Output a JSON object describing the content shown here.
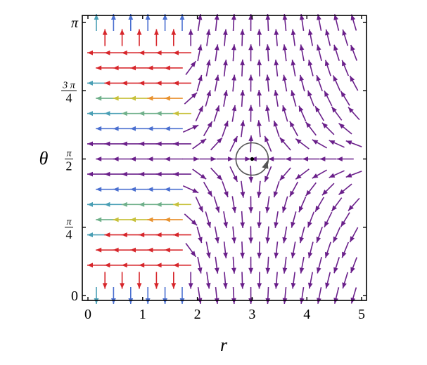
{
  "chart_data": {
    "type": "vector_field",
    "title": "",
    "xlabel": "r",
    "ylabel": "θ",
    "xlim": [
      0,
      5
    ],
    "ylim": [
      0,
      3.14159
    ],
    "grid": false,
    "legend": null,
    "x_ticks": [
      {
        "value": 0,
        "label": "0"
      },
      {
        "value": 1,
        "label": "1"
      },
      {
        "value": 2,
        "label": "2"
      },
      {
        "value": 3,
        "label": "3"
      },
      {
        "value": 4,
        "label": "4"
      },
      {
        "value": 5,
        "label": "5"
      }
    ],
    "y_ticks": [
      {
        "value": 0,
        "label": "0"
      },
      {
        "value": 0.785398,
        "label_num": "π",
        "label_den": "4"
      },
      {
        "value": 1.570796,
        "label_num": "π",
        "label_den": "2"
      },
      {
        "value": 2.356194,
        "label_num": "3 π",
        "label_den": "4"
      },
      {
        "value": 3.14159,
        "label": "π"
      }
    ],
    "fixed_point": {
      "r": 3,
      "theta": 1.570796,
      "type": "saddle",
      "marker": "circle-with-arrow"
    },
    "description": "Stream/vector plot: arrows point left (−r) for r < 2 with colors by magnitude (red = large, purple = small); near θ=0 and θ=π arrows point vertically away from θ=π/2; for r > 2 arrows are purple and flow vertically away from θ=π/2 and horizontally toward r=3 along θ=π/2, forming a saddle at (3, π/2).",
    "colors": {
      "high_magnitude": "#d7262b",
      "mid_high": "#e8912d",
      "mid": "#c7c13a",
      "mid_low": "#6fb08a",
      "low_cyan": "#4a9fb5",
      "low_blue": "#4a6fd0",
      "lowest": "#6a1f8a",
      "circle": "#555555"
    }
  },
  "axes": {
    "x_title": "r",
    "y_title": "θ"
  }
}
